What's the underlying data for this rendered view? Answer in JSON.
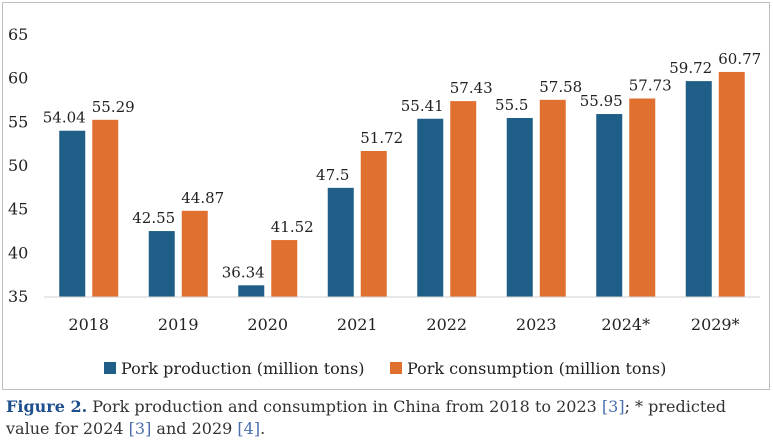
{
  "colors": {
    "production": "#1f5f87",
    "consumption": "#e07030"
  },
  "chart_data": {
    "type": "bar",
    "categories": [
      "2018",
      "2019",
      "2020",
      "2021",
      "2022",
      "2023",
      "2024*",
      "2029*"
    ],
    "series": [
      {
        "name": "Pork production (million tons)",
        "values": [
          54.04,
          42.55,
          36.34,
          47.5,
          55.41,
          55.5,
          55.95,
          59.72
        ]
      },
      {
        "name": "Pork consumption (million tons)",
        "values": [
          55.29,
          44.87,
          41.52,
          51.72,
          57.43,
          57.58,
          57.73,
          60.77
        ]
      }
    ],
    "value_labels": [
      [
        "54.04",
        "42.55",
        "36.34",
        "47.5",
        "55.41",
        "55.5",
        "55.95",
        "59.72"
      ],
      [
        "55.29",
        "44.87",
        "41.52",
        "51.72",
        "57.43",
        "57.58",
        "57.73",
        "60.77"
      ]
    ],
    "ylim": [
      35,
      65
    ],
    "yticks": [
      "35",
      "40",
      "45",
      "50",
      "55",
      "60",
      "65"
    ],
    "legend_position": "bottom"
  },
  "caption": {
    "figure": "Figure 2.",
    "text1": " Pork production and consumption in China from 2018 to 2023 ",
    "ref1": "[3]",
    "text2": "; * predicted value for 2024 ",
    "ref2": "[3]",
    "text3": " and 2029 ",
    "ref3": "[4]",
    "text4": "."
  }
}
